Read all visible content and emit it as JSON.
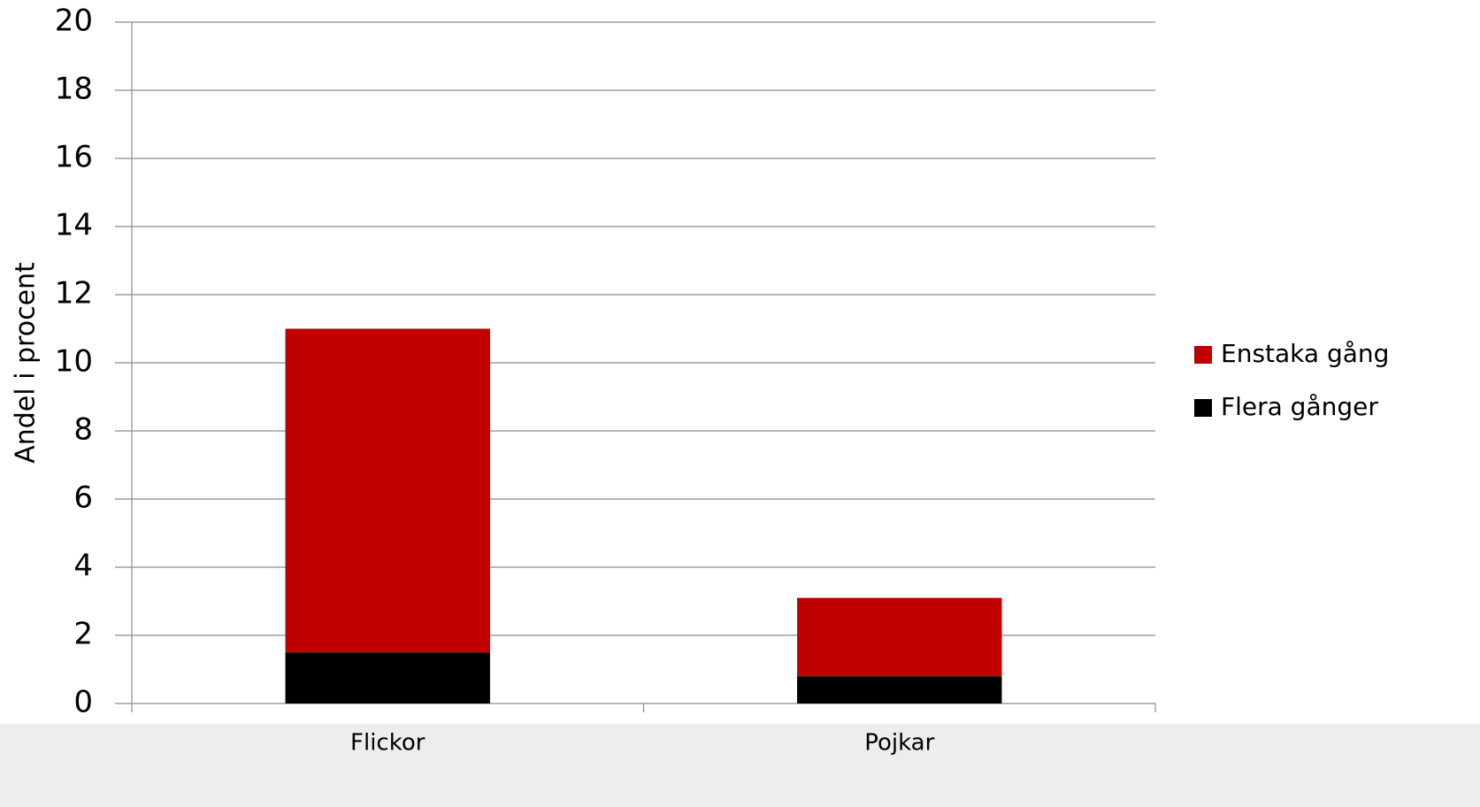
{
  "chart_data": {
    "type": "stacked-bar",
    "y_label": "Andel i procent",
    "categories": [
      "Flickor",
      "Pojkar"
    ],
    "series": [
      {
        "name": "Flera gånger",
        "color": "#000000",
        "values": [
          1.5,
          0.8
        ]
      },
      {
        "name": "Enstaka gång",
        "color": "#c00000",
        "values": [
          9.5,
          2.3
        ]
      }
    ],
    "ylim": [
      0,
      20
    ],
    "yticks": [
      0,
      2,
      4,
      6,
      8,
      10,
      12,
      14,
      16,
      18,
      20
    ],
    "grid": true,
    "legend": "right"
  }
}
